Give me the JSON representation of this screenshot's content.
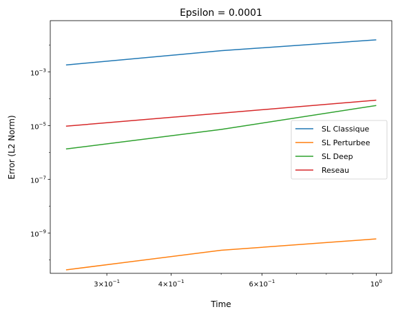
{
  "chart_data": {
    "type": "line",
    "title": "Epsilon = 0.0001",
    "xlabel": "Time",
    "ylabel": "Error (L2 Norm)",
    "xscale": "log",
    "yscale": "log",
    "xlim": [
      0.233,
      1.072
    ],
    "ylim": [
      3.2e-11,
      0.08
    ],
    "x_ticks": [
      {
        "value": 0.3,
        "base": "3",
        "exp": "−1",
        "times": true
      },
      {
        "value": 0.4,
        "base": "4",
        "exp": "−1",
        "times": true
      },
      {
        "value": 0.6,
        "base": "6",
        "exp": "−1",
        "times": true
      },
      {
        "value": 1.0,
        "base": "10",
        "exp": "0",
        "times": false
      }
    ],
    "x_minor_ticks": [
      0.5,
      0.7,
      0.8,
      0.9
    ],
    "y_ticks": [
      {
        "value": 1e-09,
        "base": "10",
        "exp": "−9"
      },
      {
        "value": 1e-07,
        "base": "10",
        "exp": "−7"
      },
      {
        "value": 1e-05,
        "base": "10",
        "exp": "−5"
      },
      {
        "value": 0.001,
        "base": "10",
        "exp": "−3"
      }
    ],
    "grid": false,
    "legend_position": "center-right",
    "x": [
      0.25,
      0.5,
      1.0
    ],
    "series": [
      {
        "name": "SL Classique",
        "color": "#1f77b4",
        "values": [
          0.0018,
          0.0061,
          0.0155
        ]
      },
      {
        "name": "SL Perturbee",
        "color": "#ff7f0e",
        "values": [
          4.3e-11,
          2.3e-10,
          6.1e-10
        ]
      },
      {
        "name": "SL Deep",
        "color": "#2ca02c",
        "values": [
          1.35e-06,
          7.2e-06,
          5.6e-05
        ]
      },
      {
        "name": "Reseau",
        "color": "#d62728",
        "values": [
          9.5e-06,
          2.9e-05,
          8.8e-05
        ]
      }
    ]
  }
}
